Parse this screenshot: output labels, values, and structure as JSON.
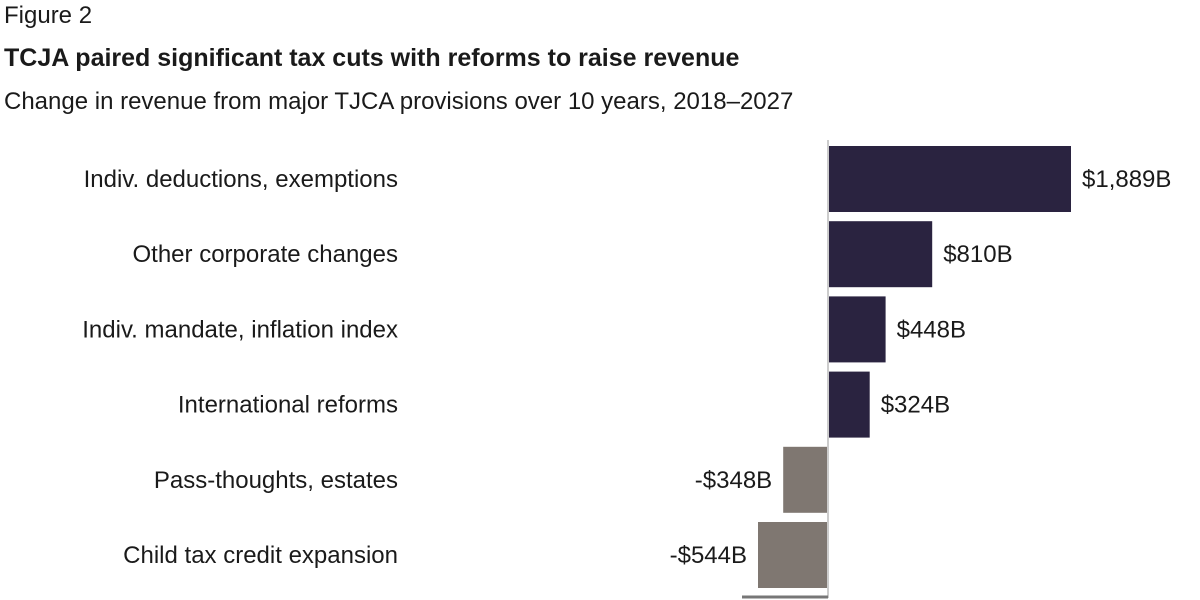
{
  "figure_label": "Figure 2",
  "title": "TCJA paired significant tax cuts with reforms to raise revenue",
  "subtitle": "Change in revenue from major TJCA provisions over 10 years, 2018–2027",
  "chart_data": {
    "type": "bar",
    "orientation": "horizontal",
    "categories": [
      "Indiv. deductions, exemptions",
      "Other corporate changes",
      "Indiv. mandate, inflation index",
      "International reforms",
      "Pass-thoughts, estates",
      "Child tax credit expansion"
    ],
    "values": [
      1889,
      810,
      448,
      324,
      -348,
      -544
    ],
    "value_labels": [
      "$1,889B",
      "$810B",
      "$448B",
      "$324B",
      "-$348B",
      "-$544B"
    ],
    "unit": "billions of dollars",
    "colors": {
      "positive": "#2a2340",
      "negative": "#7f7771",
      "axis": "#cccccc"
    },
    "grid": false,
    "legend": "none"
  }
}
